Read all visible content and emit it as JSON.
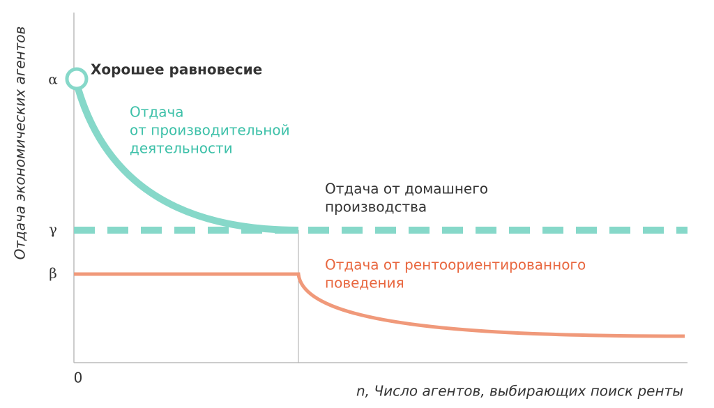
{
  "axes": {
    "y_label": "Отдача экономических агентов",
    "x_label": "n, Число агентов, выбирающих поиск ренты",
    "origin": "0",
    "y_markers": [
      "α",
      "γ",
      "β"
    ]
  },
  "annotations": {
    "equilibrium": "Хорошее равновесие",
    "productive": [
      "Отдача",
      "от производительной",
      "деятельности"
    ],
    "home": [
      "Отдача от домашнего",
      "производства"
    ],
    "rent": [
      "Отдача от рентоориентированного",
      "поведения"
    ]
  }
}
